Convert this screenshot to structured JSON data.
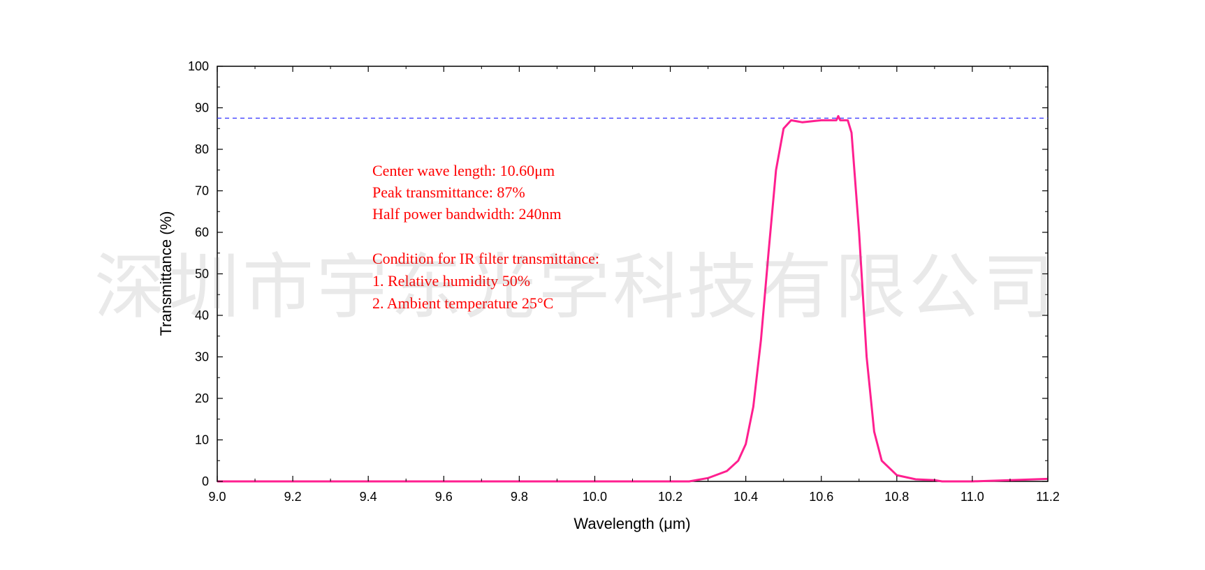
{
  "chart_data": {
    "type": "line",
    "xlabel": "Wavelength (μm)",
    "ylabel": "Transmittance (%)",
    "xlim": [
      9.0,
      11.2
    ],
    "ylim": [
      0,
      100
    ],
    "x_ticks": [
      "9.0",
      "9.2",
      "9.4",
      "9.6",
      "9.8",
      "10.0",
      "10.2",
      "10.4",
      "10.6",
      "10.8",
      "11.0",
      "11.2"
    ],
    "y_ticks": [
      "0",
      "10",
      "20",
      "30",
      "40",
      "50",
      "60",
      "70",
      "80",
      "90",
      "100"
    ],
    "grid": false,
    "reference_line": {
      "y": 87.5,
      "style": "dashed",
      "color": "#3333ff"
    },
    "annotations": [
      "Center wave length: 10.60μm",
      "Peak transmittance: 87%",
      "Half power bandwidth: 240nm",
      "",
      "Condition for IR filter transmittance:",
      "1. Relative humidity 50%",
      "2. Ambient temperature 25°C"
    ],
    "series": [
      {
        "color": "#ff1f8f",
        "x": [
          9.0,
          10.25,
          10.3,
          10.35,
          10.38,
          10.4,
          10.42,
          10.44,
          10.46,
          10.48,
          10.5,
          10.52,
          10.55,
          10.6,
          10.64,
          10.645,
          10.65,
          10.67,
          10.68,
          10.7,
          10.72,
          10.74,
          10.76,
          10.8,
          10.85,
          10.9,
          10.92,
          11.0,
          11.1,
          11.2
        ],
        "y": [
          0,
          0,
          0.8,
          2.5,
          5,
          9,
          18,
          34,
          55,
          75,
          85,
          87,
          86.5,
          87,
          87,
          88,
          87,
          87,
          84,
          60,
          30,
          12,
          5,
          1.5,
          0.5,
          0.3,
          0,
          0,
          0.3,
          0.6
        ]
      }
    ]
  },
  "watermark": "深圳市宇东光学科技有限公司"
}
